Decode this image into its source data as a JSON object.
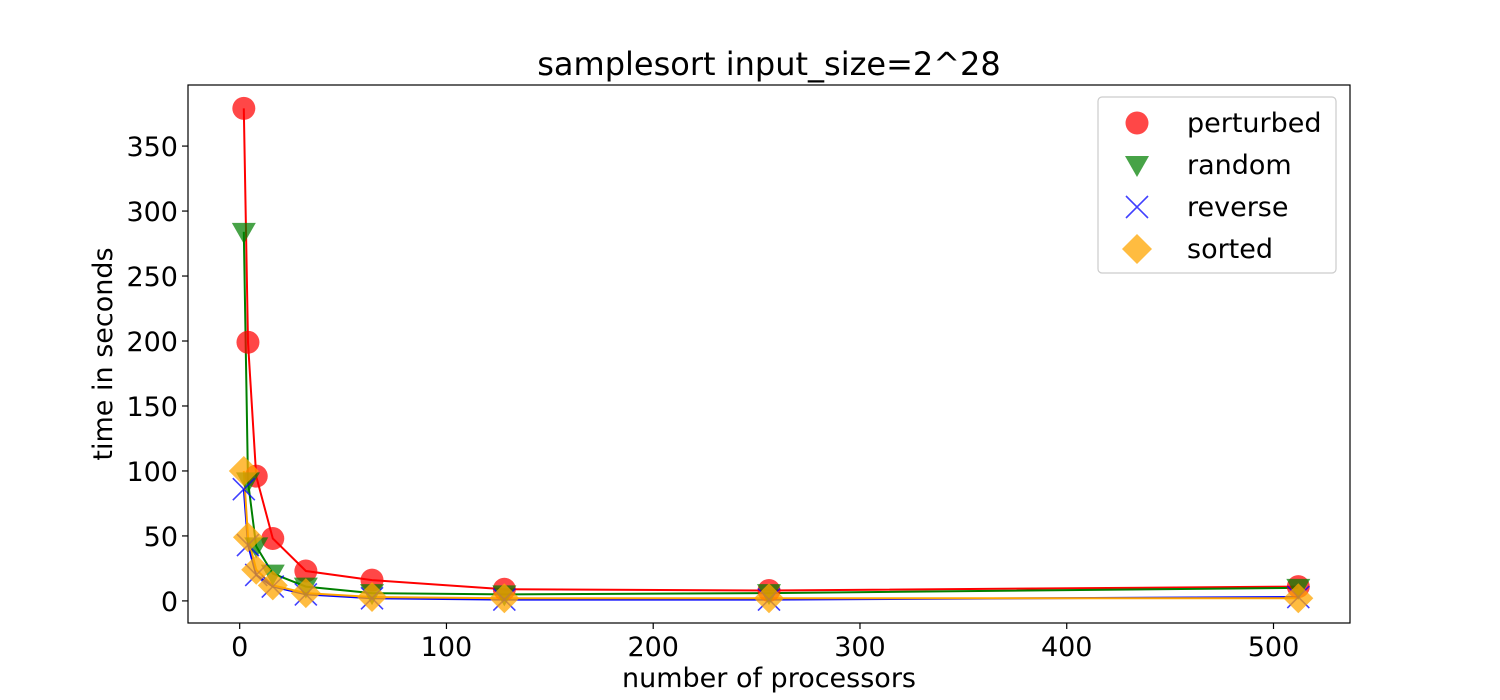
{
  "chart_data": {
    "type": "scatter",
    "title": "samplesort input_size=2^28",
    "xlabel": "number of processors",
    "ylabel": "time in seconds",
    "xlim": [
      -25,
      537
    ],
    "ylim": [
      -17,
      397
    ],
    "x_ticks": [
      0,
      100,
      200,
      300,
      400,
      500
    ],
    "y_ticks": [
      0,
      50,
      100,
      150,
      200,
      250,
      300,
      350
    ],
    "grid": false,
    "legend_position": "top-right",
    "x": [
      2,
      4,
      8,
      16,
      32,
      64,
      128,
      256,
      512
    ],
    "series": [
      {
        "name": "perturbed",
        "marker": "circle",
        "color": "#ff0000",
        "line_color": "#ff0000",
        "values": [
          379,
          199,
          96,
          48,
          23,
          16,
          9,
          8,
          11
        ]
      },
      {
        "name": "random",
        "marker": "triangle-down",
        "color": "#008000",
        "line_color": "#008000",
        "values": [
          284,
          92,
          42,
          21,
          11,
          6,
          5,
          6,
          10
        ]
      },
      {
        "name": "reverse",
        "marker": "x",
        "color": "#0000ff",
        "line_color": "#0000ff",
        "values": [
          86,
          43,
          20,
          11,
          5,
          2,
          1,
          1,
          3
        ]
      },
      {
        "name": "sorted",
        "marker": "diamond",
        "color": "#ffa500",
        "line_color": "#ffa500",
        "values": [
          100,
          49,
          24,
          12,
          6,
          3,
          2,
          2,
          2
        ]
      }
    ]
  }
}
